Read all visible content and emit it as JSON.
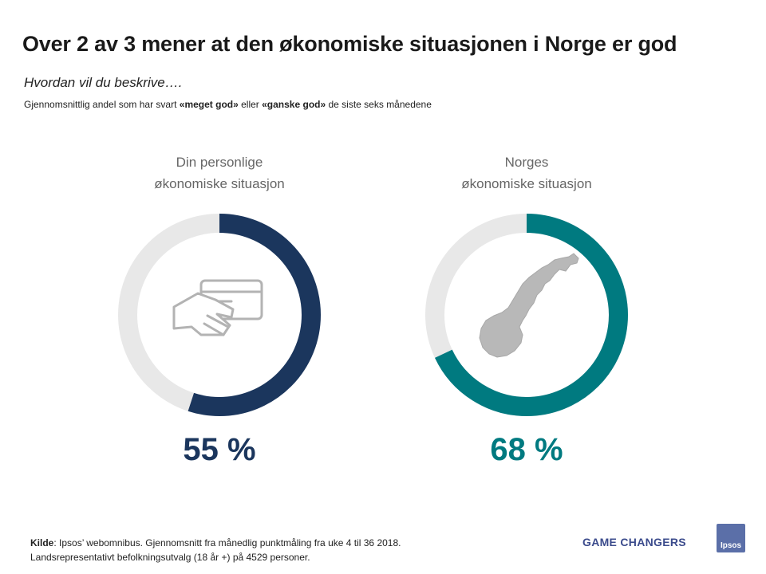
{
  "title": "Over 2 av 3 mener at den økonomiske situasjonen i Norge er god",
  "question": "Hvordan vil du beskrive….",
  "subtitle": {
    "pre": "Gjennomsnittlig andel som har svart ",
    "bold1": "«meget god»",
    "mid": " eller ",
    "bold2": "«ganske god»",
    "post": " de siste seks månedene"
  },
  "chart_data": [
    {
      "type": "pie",
      "title": "Din personlige økonomiske situasjon",
      "title_lines": [
        "Din personlige",
        "økonomiske situasjon"
      ],
      "value": 55,
      "value_label": "55 %",
      "color": "#1b365d",
      "track_color": "#e8e8e8",
      "icon": "credit-card-hand-icon"
    },
    {
      "type": "pie",
      "title": "Norges økonomiske situasjon",
      "title_lines": [
        "Norges",
        "økonomiske situasjon"
      ],
      "value": 68,
      "value_label": "68 %",
      "color": "#007a80",
      "track_color": "#e8e8e8",
      "icon": "norway-map-icon"
    }
  ],
  "footer": {
    "source_label": "Kilde",
    "source_text": ": Ipsos’ webomnibus. Gjennomsnitt fra månedlig punktmåling fra uke 4 til 36 2018.",
    "line2": "Landsrepresentativt befolkningsutvalg (18 år +) på 4529 personer."
  },
  "brand": {
    "tagline": "GAME CHANGERS",
    "logo_text": "Ipsos",
    "logo_color": "#5b6fa8"
  }
}
